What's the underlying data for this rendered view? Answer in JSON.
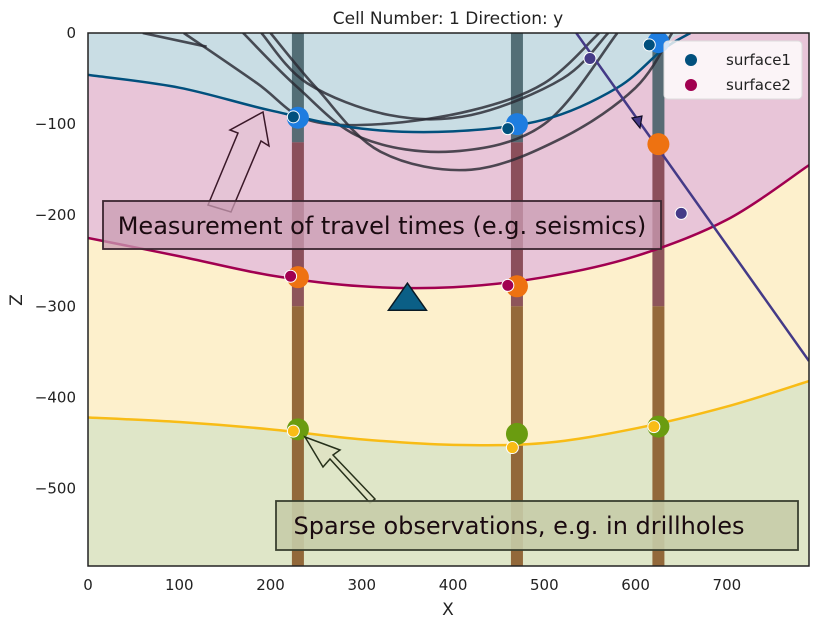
{
  "chart_data": {
    "type": "scatter",
    "title": "Cell Number: 1 Direction: y",
    "xlabel": "X",
    "ylabel": "Z",
    "xlim": [
      0,
      790
    ],
    "ylim": [
      -585,
      0
    ],
    "xticks": [
      0,
      100,
      200,
      300,
      400,
      500,
      600,
      700
    ],
    "yticks": [
      0,
      -100,
      -200,
      -300,
      -400,
      -500
    ],
    "colors": {
      "unit_top": "#c9dde4",
      "unit_pink": "#e8c5d8",
      "unit_yellow": "#fdf0cc",
      "unit_green": "#dfe6c8",
      "surface1": "#01507d",
      "surface2": "#a10050",
      "base_yellow": "#f8bc16",
      "fault": "#443a87",
      "drill_blue": "#1e7de0",
      "drill_orange": "#ee7211",
      "drill_green": "#6a9c10"
    },
    "series": [
      {
        "name": "surface1",
        "line": [
          [
            0,
            -46
          ],
          [
            100,
            -60
          ],
          [
            200,
            -85
          ],
          [
            300,
            -105
          ],
          [
            400,
            -108
          ],
          [
            500,
            -95
          ],
          [
            580,
            -60
          ],
          [
            630,
            -18
          ],
          [
            660,
            0
          ]
        ],
        "points": [
          [
            225,
            -92
          ],
          [
            460,
            -105
          ],
          [
            615,
            -13
          ]
        ]
      },
      {
        "name": "surface2",
        "line": [
          [
            0,
            -225
          ],
          [
            100,
            -245
          ],
          [
            200,
            -266
          ],
          [
            300,
            -278
          ],
          [
            400,
            -279
          ],
          [
            500,
            -268
          ],
          [
            600,
            -245
          ],
          [
            700,
            -205
          ],
          [
            790,
            -145
          ]
        ],
        "points": [
          [
            222,
            -267
          ],
          [
            460,
            -277
          ]
        ]
      },
      {
        "line": [
          [
            0,
            -422
          ],
          [
            100,
            -427
          ],
          [
            200,
            -435
          ],
          [
            300,
            -446
          ],
          [
            400,
            -452
          ],
          [
            500,
            -450
          ],
          [
            600,
            -434
          ],
          [
            700,
            -410
          ],
          [
            790,
            -382
          ]
        ],
        "points": [
          [
            225,
            -437
          ],
          [
            465,
            -455
          ],
          [
            620,
            -432
          ]
        ]
      },
      {
        "line": [
          [
            535,
            0
          ],
          [
            790,
            -360
          ]
        ],
        "points": [
          [
            550,
            -28
          ],
          [
            650,
            -198
          ]
        ]
      }
    ],
    "drillholes": [
      {
        "x": 230,
        "observations": [
          [
            230,
            -93,
            "blue"
          ],
          [
            230,
            -268,
            "orange"
          ],
          [
            230,
            -435,
            "green"
          ]
        ]
      },
      {
        "x": 470,
        "observations": [
          [
            470,
            -100,
            "blue"
          ],
          [
            470,
            -278,
            "orange"
          ],
          [
            470,
            -440,
            "green"
          ]
        ]
      },
      {
        "x": 625,
        "observations": [
          [
            625,
            -10,
            "blue"
          ],
          [
            625,
            -122,
            "orange"
          ],
          [
            625,
            -432,
            "green"
          ]
        ]
      }
    ],
    "travel_curves": [
      [
        [
          105,
          0
        ],
        [
          185,
          -55
        ],
        [
          240,
          -95
        ],
        [
          320,
          -100
        ],
        [
          420,
          -85
        ],
        [
          500,
          -55
        ],
        [
          560,
          0
        ]
      ],
      [
        [
          170,
          0
        ],
        [
          230,
          -60
        ],
        [
          300,
          -115
        ],
        [
          400,
          -130
        ],
        [
          500,
          -100
        ],
        [
          580,
          0
        ]
      ],
      [
        [
          200,
          0
        ],
        [
          250,
          -60
        ],
        [
          320,
          -130
        ],
        [
          420,
          -150
        ],
        [
          520,
          -115
        ],
        [
          600,
          -60
        ],
        [
          640,
          0
        ]
      ],
      [
        [
          190,
          0
        ],
        [
          240,
          -55
        ],
        [
          330,
          -90
        ],
        [
          420,
          -90
        ],
        [
          520,
          -50
        ],
        [
          570,
          0
        ]
      ],
      [
        [
          60,
          0
        ],
        [
          130,
          -15
        ]
      ]
    ],
    "annotations": [
      {
        "text": "Measurement of travel times (e.g. seismics)"
      },
      {
        "text": "Sparse observations, e.g. in drillholes"
      }
    ],
    "marker_triangle": [
      350,
      -290
    ],
    "legend": {
      "position": "top-right",
      "entries": [
        "surface1",
        "surface2"
      ]
    }
  }
}
